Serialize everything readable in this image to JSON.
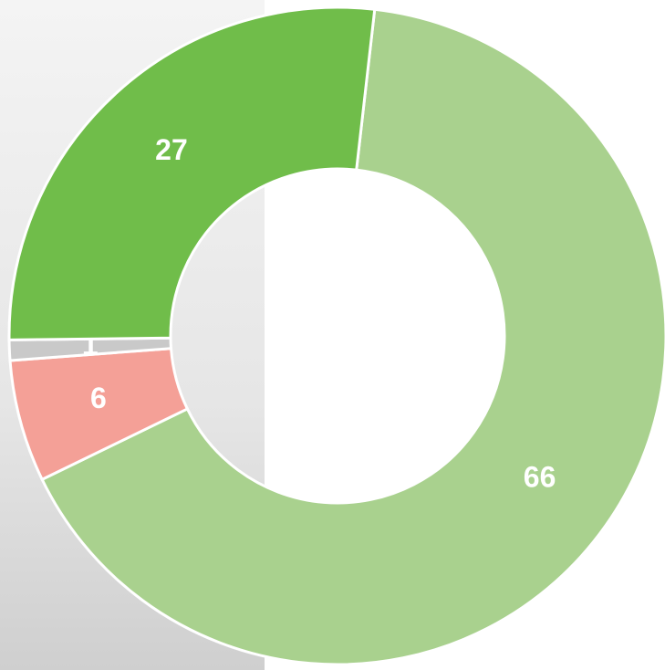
{
  "chart_data": {
    "type": "pie",
    "donut": true,
    "values": [
      66,
      6,
      1,
      27
    ],
    "colors": [
      "#a9d18e",
      "#f4a097",
      "#c9c9c9",
      "#70bd4a"
    ]
  }
}
